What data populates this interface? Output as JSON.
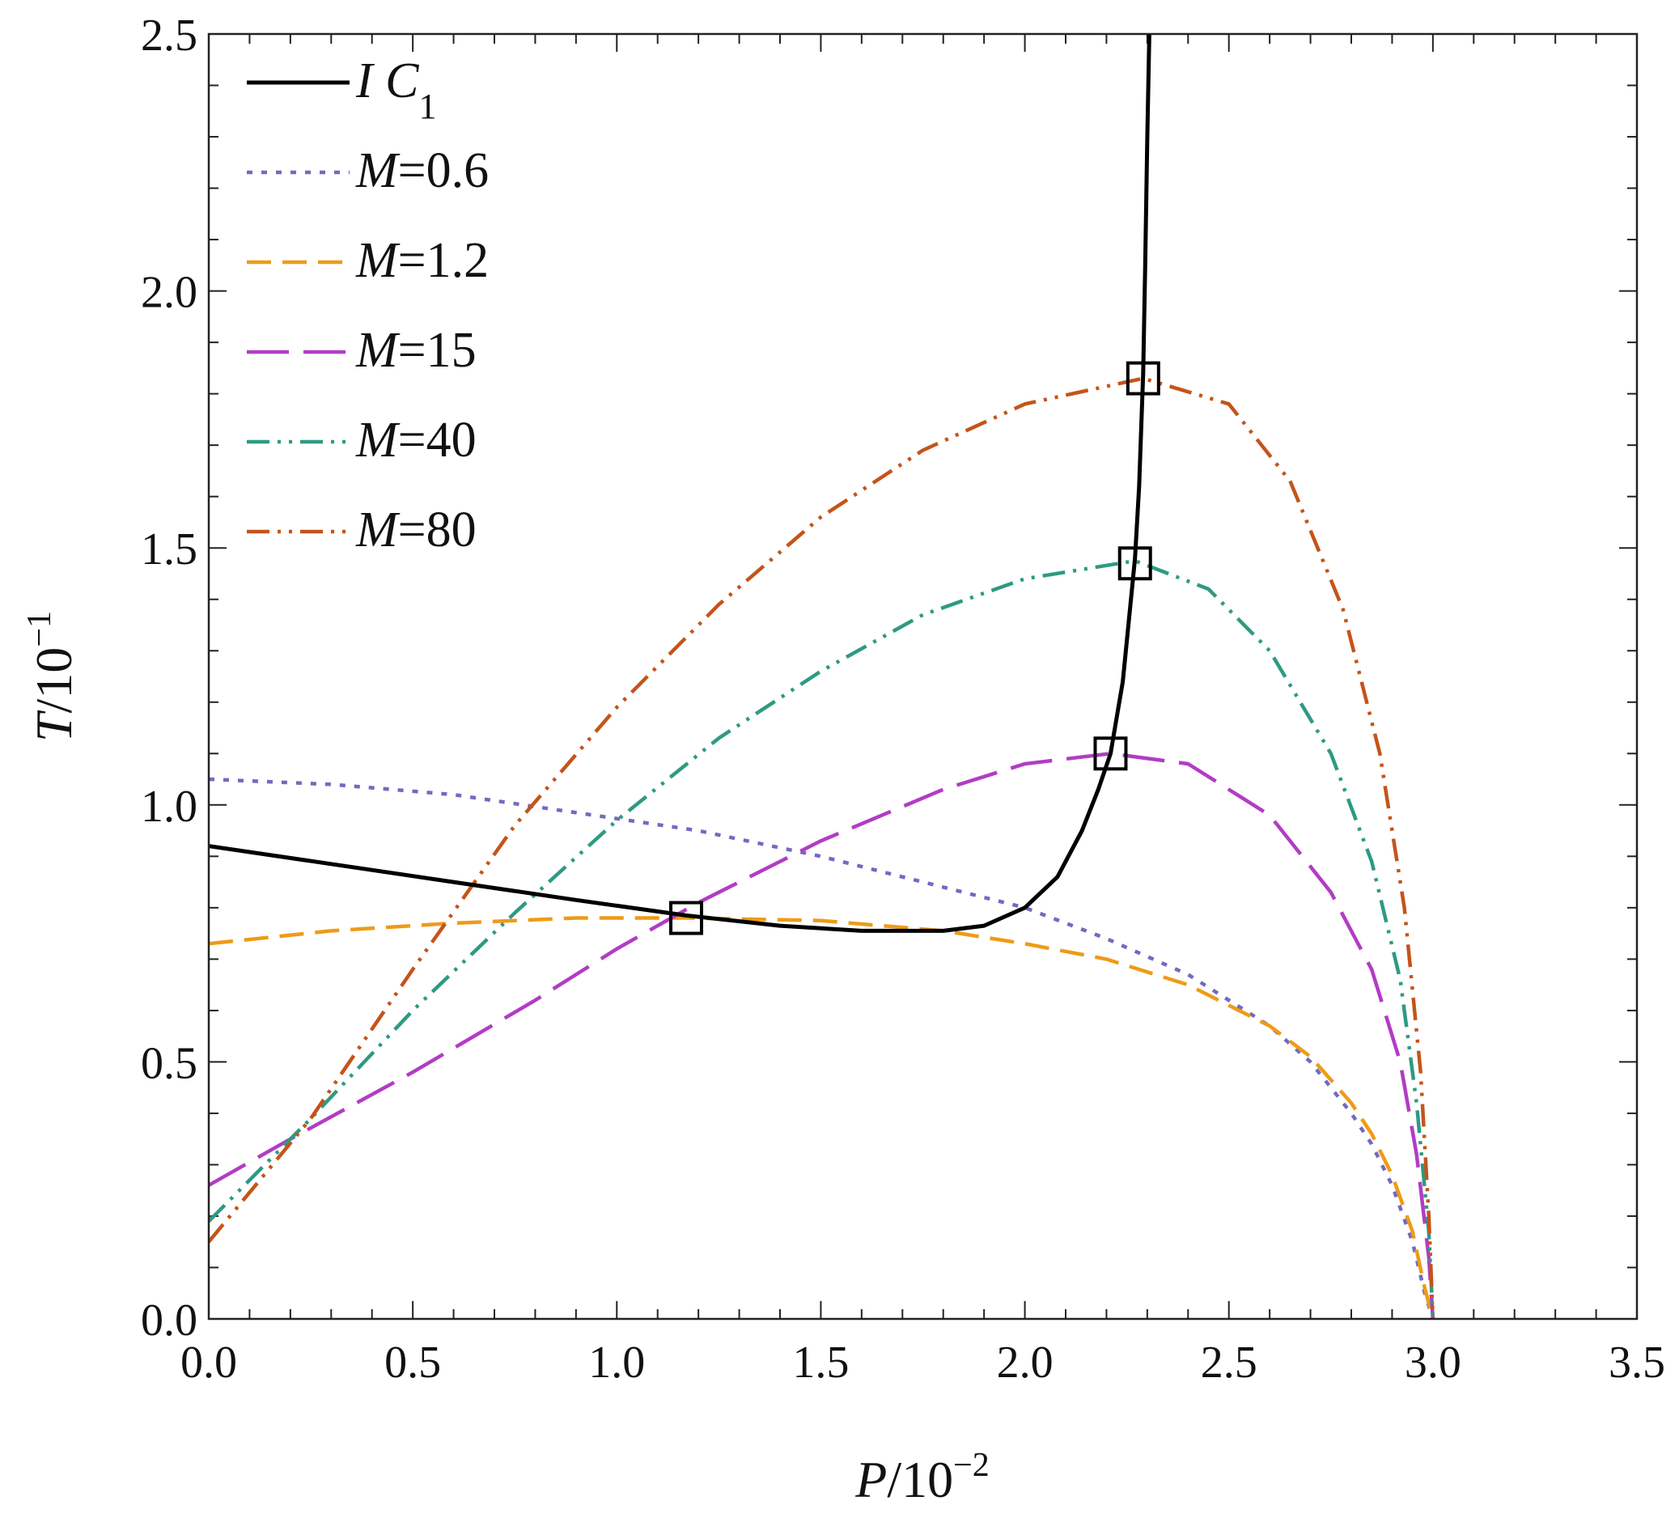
{
  "chart_data": {
    "type": "line",
    "xlabel": {
      "var": "P",
      "unit": "/10",
      "exp": "−2"
    },
    "ylabel": {
      "var": "T",
      "unit": "/10",
      "exp": "−1"
    },
    "xlim": [
      0,
      3.5
    ],
    "ylim": [
      0,
      2.5
    ],
    "x_ticks": [
      "0.0",
      "0.5",
      "1.0",
      "1.5",
      "2.0",
      "2.5",
      "3.0",
      "3.5"
    ],
    "y_ticks": [
      "0.0",
      "0.5",
      "1.0",
      "1.5",
      "2.0",
      "2.5"
    ],
    "grid": false,
    "legend_position": "top-left",
    "series": [
      {
        "name": "I C",
        "name_sub": "1",
        "color": "#000000",
        "style": "solid",
        "points": [
          [
            0,
            0.92
          ],
          [
            0.3,
            0.885
          ],
          [
            0.6,
            0.85
          ],
          [
            0.9,
            0.815
          ],
          [
            1.17,
            0.785
          ],
          [
            1.4,
            0.765
          ],
          [
            1.6,
            0.755
          ],
          [
            1.8,
            0.755
          ],
          [
            1.9,
            0.765
          ],
          [
            2.0,
            0.8
          ],
          [
            2.08,
            0.86
          ],
          [
            2.14,
            0.95
          ],
          [
            2.18,
            1.03
          ],
          [
            2.21,
            1.1
          ],
          [
            2.24,
            1.24
          ],
          [
            2.26,
            1.4
          ],
          [
            2.27,
            1.48
          ],
          [
            2.28,
            1.62
          ],
          [
            2.29,
            1.84
          ],
          [
            2.295,
            2.05
          ],
          [
            2.3,
            2.3
          ],
          [
            2.305,
            2.5
          ]
        ]
      },
      {
        "name": "M=0.6",
        "color": "#7469c0",
        "style": "dotted",
        "points": [
          [
            0,
            1.05
          ],
          [
            0.3,
            1.04
          ],
          [
            0.6,
            1.02
          ],
          [
            0.9,
            0.985
          ],
          [
            1.2,
            0.95
          ],
          [
            1.5,
            0.9
          ],
          [
            1.8,
            0.84
          ],
          [
            2.0,
            0.8
          ],
          [
            2.2,
            0.74
          ],
          [
            2.4,
            0.67
          ],
          [
            2.6,
            0.57
          ],
          [
            2.7,
            0.5
          ],
          [
            2.8,
            0.4
          ],
          [
            2.85,
            0.34
          ],
          [
            2.9,
            0.26
          ],
          [
            2.95,
            0.15
          ],
          [
            2.98,
            0.05
          ],
          [
            3.0,
            0.0
          ]
        ]
      },
      {
        "name": "M=1.2",
        "color": "#ee9b17",
        "style": "dashed",
        "points": [
          [
            0,
            0.73
          ],
          [
            0.3,
            0.755
          ],
          [
            0.6,
            0.77
          ],
          [
            0.9,
            0.78
          ],
          [
            1.17,
            0.78
          ],
          [
            1.5,
            0.775
          ],
          [
            1.8,
            0.755
          ],
          [
            2.0,
            0.73
          ],
          [
            2.2,
            0.7
          ],
          [
            2.4,
            0.65
          ],
          [
            2.6,
            0.57
          ],
          [
            2.7,
            0.51
          ],
          [
            2.8,
            0.42
          ],
          [
            2.85,
            0.36
          ],
          [
            2.9,
            0.28
          ],
          [
            2.95,
            0.17
          ],
          [
            2.98,
            0.06
          ],
          [
            3.0,
            0.0
          ]
        ]
      },
      {
        "name": "M=15",
        "color": "#b23cc5",
        "style": "longdash",
        "points": [
          [
            0,
            0.26
          ],
          [
            0.2,
            0.35
          ],
          [
            0.5,
            0.48
          ],
          [
            0.8,
            0.62
          ],
          [
            1.0,
            0.72
          ],
          [
            1.2,
            0.81
          ],
          [
            1.5,
            0.93
          ],
          [
            1.8,
            1.03
          ],
          [
            2.0,
            1.08
          ],
          [
            2.21,
            1.1
          ],
          [
            2.4,
            1.08
          ],
          [
            2.6,
            0.98
          ],
          [
            2.75,
            0.83
          ],
          [
            2.85,
            0.68
          ],
          [
            2.92,
            0.5
          ],
          [
            2.96,
            0.32
          ],
          [
            2.99,
            0.12
          ],
          [
            3.0,
            0.0
          ]
        ]
      },
      {
        "name": "M=40",
        "color": "#2e9a83",
        "style": "dashdotdot",
        "points": [
          [
            0,
            0.19
          ],
          [
            0.25,
            0.39
          ],
          [
            0.5,
            0.6
          ],
          [
            0.75,
            0.79
          ],
          [
            1.0,
            0.97
          ],
          [
            1.25,
            1.13
          ],
          [
            1.5,
            1.26
          ],
          [
            1.75,
            1.37
          ],
          [
            2.0,
            1.44
          ],
          [
            2.27,
            1.475
          ],
          [
            2.45,
            1.42
          ],
          [
            2.6,
            1.3
          ],
          [
            2.75,
            1.1
          ],
          [
            2.85,
            0.89
          ],
          [
            2.92,
            0.66
          ],
          [
            2.96,
            0.42
          ],
          [
            2.99,
            0.17
          ],
          [
            3.0,
            0.0
          ]
        ]
      },
      {
        "name": "M=80",
        "color": "#c4541a",
        "style": "dashdotdot",
        "points": [
          [
            0,
            0.15
          ],
          [
            0.25,
            0.39
          ],
          [
            0.5,
            0.68
          ],
          [
            0.75,
            0.96
          ],
          [
            1.0,
            1.19
          ],
          [
            1.25,
            1.39
          ],
          [
            1.5,
            1.56
          ],
          [
            1.75,
            1.69
          ],
          [
            2.0,
            1.78
          ],
          [
            2.29,
            1.83
          ],
          [
            2.5,
            1.78
          ],
          [
            2.65,
            1.63
          ],
          [
            2.78,
            1.38
          ],
          [
            2.87,
            1.1
          ],
          [
            2.93,
            0.8
          ],
          [
            2.97,
            0.48
          ],
          [
            2.99,
            0.2
          ],
          [
            3.0,
            0.0
          ]
        ]
      }
    ],
    "markers": [
      {
        "x": 1.17,
        "y": 0.78
      },
      {
        "x": 2.21,
        "y": 1.1
      },
      {
        "x": 2.27,
        "y": 1.47
      },
      {
        "x": 2.29,
        "y": 1.83
      }
    ]
  }
}
